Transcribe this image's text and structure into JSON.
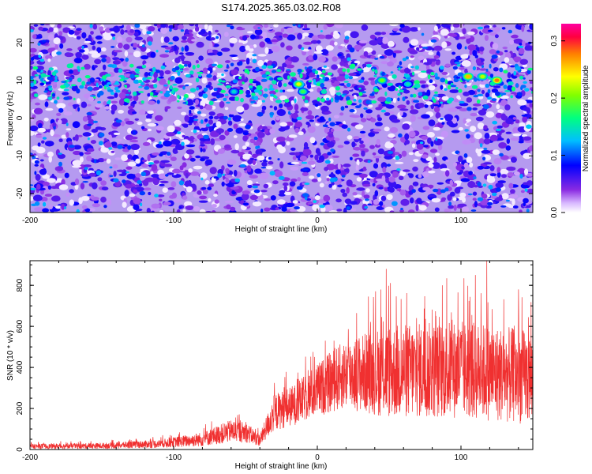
{
  "title": "S174.2025.365.03.02.R08",
  "chart_data": [
    {
      "type": "heatmap",
      "xlabel": "Height of straight line (km)",
      "ylabel": "Frequency (Hz)",
      "xlim": [
        -200,
        150
      ],
      "ylim": [
        -25,
        25
      ],
      "x_ticks": [
        -200,
        -100,
        0,
        100
      ],
      "y_ticks": [
        -20,
        -10,
        0,
        10,
        20
      ],
      "colorbar": {
        "label": "Normalized spectral amplitude",
        "range": [
          0.0,
          0.33
        ],
        "ticks": [
          "0.0",
          "0.1",
          "0.2",
          "0.3"
        ],
        "colors": [
          "#ffffff",
          "#8a2be2",
          "#0000ff",
          "#00bfff",
          "#00ff80",
          "#80ff00",
          "#ffff00",
          "#ff8000",
          "#ff0040",
          "#ff00a0"
        ]
      },
      "description_of_field": "dense noise mostly 0.0-0.08, enhanced band near +8 Hz with peaks up to ~0.3 around x=-15, 45, 105, 125 km",
      "hotspots": [
        {
          "x": -13,
          "y": 9,
          "value": 0.23
        },
        {
          "x": -10,
          "y": 7,
          "value": 0.18
        },
        {
          "x": 45,
          "y": 10,
          "value": 0.2
        },
        {
          "x": 105,
          "y": 11,
          "value": 0.26
        },
        {
          "x": 115,
          "y": 11,
          "value": 0.22
        },
        {
          "x": 125,
          "y": 10,
          "value": 0.28
        },
        {
          "x": -58,
          "y": 7,
          "value": 0.14
        },
        {
          "x": 63,
          "y": 9,
          "value": 0.15
        }
      ]
    },
    {
      "type": "line",
      "xlabel": "Height of straight line (km)",
      "ylabel": "SNR (10 * v/v)",
      "xlim": [
        -200,
        150
      ],
      "ylim": [
        0,
        920
      ],
      "x_ticks": [
        -200,
        -100,
        0,
        100
      ],
      "y_ticks": [
        0,
        200,
        400,
        600,
        800
      ],
      "color": "#f03030",
      "envelope": [
        {
          "x": -200,
          "mean": 15,
          "spread": 12
        },
        {
          "x": -150,
          "mean": 18,
          "spread": 14
        },
        {
          "x": -110,
          "mean": 28,
          "spread": 20
        },
        {
          "x": -80,
          "mean": 50,
          "spread": 35
        },
        {
          "x": -60,
          "mean": 90,
          "spread": 55
        },
        {
          "x": -50,
          "mean": 85,
          "spread": 50
        },
        {
          "x": -40,
          "mean": 45,
          "spread": 30
        },
        {
          "x": -30,
          "mean": 180,
          "spread": 90
        },
        {
          "x": -15,
          "mean": 220,
          "spread": 100
        },
        {
          "x": 0,
          "mean": 290,
          "spread": 130
        },
        {
          "x": 20,
          "mean": 370,
          "spread": 170
        },
        {
          "x": 50,
          "mean": 380,
          "spread": 230
        },
        {
          "x": 100,
          "mean": 390,
          "spread": 240
        },
        {
          "x": 150,
          "mean": 350,
          "spread": 230
        }
      ],
      "peaks": [
        {
          "x": 48,
          "y": 880
        },
        {
          "x": 110,
          "y": 850
        },
        {
          "x": 118,
          "y": 920
        },
        {
          "x": 140,
          "y": 780
        }
      ]
    }
  ]
}
